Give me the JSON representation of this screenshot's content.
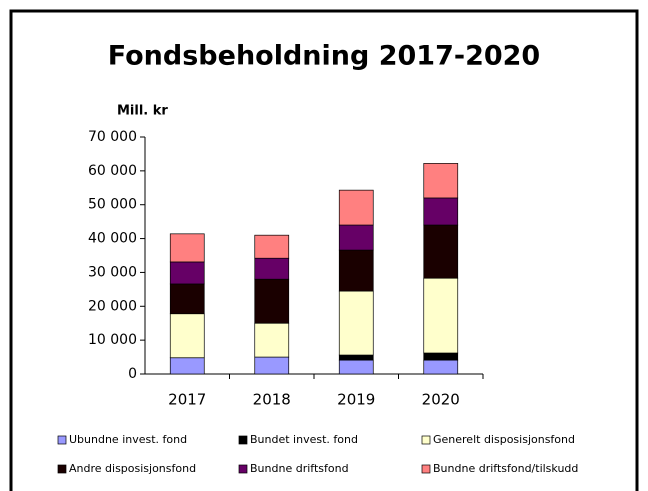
{
  "chart_data": {
    "type": "stacked_bar",
    "title": "Fondsbeholdning 2017-2020",
    "y_label": "Mill. kr",
    "categories": [
      "2017",
      "2018",
      "2019",
      "2020"
    ],
    "series": [
      {
        "name": "Ubundne invest. fond",
        "color": "#9999ff",
        "values": [
          4800,
          5000,
          4100,
          4100
        ]
      },
      {
        "name": "Bundet invest. fond",
        "color": "#000000",
        "values": [
          0,
          0,
          1500,
          2100
        ]
      },
      {
        "name": "Generelt disposisjonsfond",
        "color": "#ffffcc",
        "values": [
          13000,
          10000,
          18900,
          22100
        ]
      },
      {
        "name": "Andre disposisjonsfond",
        "color": "#1a0000",
        "values": [
          8800,
          13000,
          12100,
          15700
        ]
      },
      {
        "name": "Bundne driftsfond",
        "color": "#660066",
        "values": [
          6500,
          6200,
          7400,
          8000
        ]
      },
      {
        "name": "Bundne driftsfond/tilskudd",
        "color": "#ff8080",
        "values": [
          8300,
          6800,
          10300,
          10200
        ]
      }
    ],
    "ylim": [
      0,
      70000
    ],
    "yticks": [
      0,
      {
        "value": 10000,
        "label": "10 000"
      },
      {
        "value": 20000,
        "label": "20 000"
      },
      {
        "value": 30000,
        "label": "30 000"
      },
      {
        "value": 40000,
        "label": "40 000"
      },
      {
        "value": 50000,
        "label": "50 000"
      },
      {
        "value": 60000,
        "label": "60 000"
      },
      {
        "value": 70000,
        "label": "70 000"
      }
    ],
    "grid": false
  }
}
